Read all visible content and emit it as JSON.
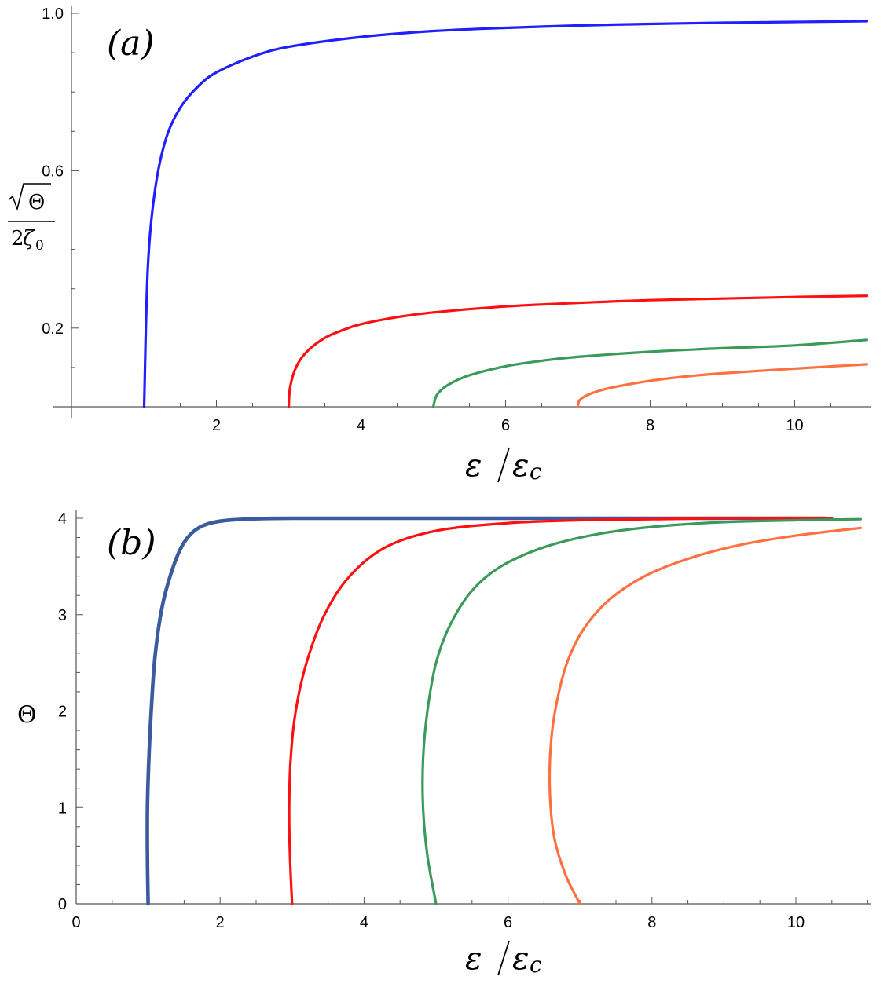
{
  "chart_data": [
    {
      "type": "line",
      "panel_label": "(a)",
      "xlabel": "ε/ε_c",
      "ylabel": "√Θ / 2ζ₀",
      "xlim": [
        0,
        11
      ],
      "ylim": [
        0,
        1.0
      ],
      "xticks": [
        "2",
        "4",
        "6",
        "8",
        "10"
      ],
      "yticks": [
        "0.2",
        "0.6",
        "1.0"
      ],
      "grid": false,
      "series": [
        {
          "color": "#1f1fff",
          "x": [
            1.0,
            1.05,
            1.15,
            1.3,
            1.5,
            1.75,
            2.0,
            2.5,
            3.0,
            4.0,
            5.0,
            6.0,
            7.0,
            8.0,
            9.0,
            10.0,
            11.0
          ],
          "y": [
            0.0,
            0.35,
            0.55,
            0.68,
            0.76,
            0.815,
            0.85,
            0.89,
            0.915,
            0.94,
            0.955,
            0.963,
            0.969,
            0.973,
            0.976,
            0.978,
            0.98
          ]
        },
        {
          "color": "#ff1010",
          "x": [
            3.0,
            3.02,
            3.1,
            3.25,
            3.5,
            3.75,
            4.0,
            4.5,
            5.0,
            6.0,
            7.0,
            8.0,
            9.0,
            10.0,
            11.0
          ],
          "y": [
            0.0,
            0.05,
            0.1,
            0.14,
            0.175,
            0.195,
            0.21,
            0.228,
            0.24,
            0.255,
            0.264,
            0.271,
            0.275,
            0.279,
            0.282
          ]
        },
        {
          "color": "#3a9a5a",
          "x": [
            5.0,
            5.05,
            5.2,
            5.5,
            6.0,
            6.5,
            7.0,
            8.0,
            9.0,
            10.0,
            11.0
          ],
          "y": [
            0.0,
            0.03,
            0.055,
            0.08,
            0.103,
            0.117,
            0.127,
            0.14,
            0.149,
            0.156,
            0.17
          ]
        },
        {
          "color": "#ff7040",
          "x": [
            7.0,
            7.03,
            7.2,
            7.5,
            8.0,
            8.5,
            9.0,
            10.0,
            11.0
          ],
          "y": [
            0.0,
            0.018,
            0.035,
            0.05,
            0.066,
            0.077,
            0.085,
            0.097,
            0.108
          ]
        }
      ]
    },
    {
      "type": "line",
      "panel_label": "(b)",
      "xlabel": "ε/ε_c",
      "ylabel": "Θ",
      "xlim": [
        0,
        11
      ],
      "ylim": [
        0,
        4
      ],
      "xticks": [
        "0",
        "2",
        "4",
        "6",
        "8",
        "10"
      ],
      "yticks": [
        "0",
        "1",
        "2",
        "3",
        "4"
      ],
      "grid": false,
      "series": [
        {
          "color": "#3c5a9e",
          "x": [
            1.0,
            0.99,
            0.99,
            1.01,
            1.05,
            1.1,
            1.2,
            1.35,
            1.5,
            1.7,
            2.0,
            2.5,
            3.0,
            4.0,
            6.0,
            10.4
          ],
          "y": [
            0.0,
            0.5,
            1.0,
            1.5,
            2.1,
            2.6,
            3.1,
            3.5,
            3.75,
            3.9,
            3.97,
            3.995,
            4.0,
            4.0,
            4.0,
            4.0
          ]
        },
        {
          "color": "#ff1010",
          "x": [
            3.0,
            2.97,
            2.96,
            2.98,
            3.05,
            3.2,
            3.45,
            3.8,
            4.3,
            5.0,
            6.0,
            7.0,
            8.0,
            9.0,
            10.5
          ],
          "y": [
            0.0,
            0.5,
            1.0,
            1.5,
            2.0,
            2.5,
            3.0,
            3.4,
            3.7,
            3.87,
            3.95,
            3.98,
            3.99,
            4.0,
            4.0
          ]
        },
        {
          "color": "#3a9a5a",
          "x": [
            5.0,
            4.88,
            4.82,
            4.82,
            4.88,
            5.0,
            5.2,
            5.5,
            5.9,
            6.5,
            7.2,
            8.0,
            9.0,
            10.0,
            10.9
          ],
          "y": [
            0.0,
            0.5,
            1.0,
            1.5,
            2.0,
            2.5,
            2.9,
            3.25,
            3.5,
            3.7,
            3.83,
            3.91,
            3.96,
            3.98,
            3.99
          ]
        },
        {
          "color": "#ff7040",
          "x": [
            7.0,
            6.8,
            6.64,
            6.58,
            6.6,
            6.68,
            6.82,
            7.05,
            7.4,
            7.9,
            8.5,
            9.2,
            10.0,
            10.9
          ],
          "y": [
            0.0,
            0.3,
            0.7,
            1.2,
            1.7,
            2.1,
            2.5,
            2.85,
            3.15,
            3.4,
            3.58,
            3.72,
            3.82,
            3.9
          ]
        }
      ]
    }
  ]
}
